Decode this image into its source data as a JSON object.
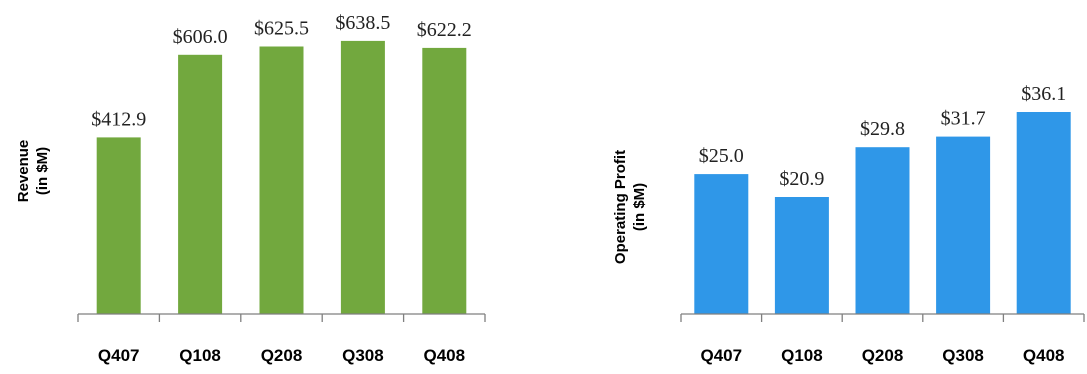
{
  "chart_data": [
    {
      "type": "bar",
      "title": "",
      "ylabel": [
        "Revenue",
        "(in $M)"
      ],
      "xlabel": "",
      "categories": [
        "Q407",
        "Q108",
        "Q208",
        "Q308",
        "Q408"
      ],
      "values": [
        412.9,
        606.0,
        625.5,
        638.5,
        622.2
      ],
      "value_labels": [
        "$412.9",
        "$606.0",
        "$625.5",
        "$638.5",
        "$622.2"
      ],
      "ylim": [
        0,
        650
      ],
      "grid": false,
      "color": "#72a83e"
    },
    {
      "type": "bar",
      "title": "",
      "ylabel": [
        "Operating Profit",
        "(in $M)"
      ],
      "xlabel": "",
      "categories": [
        "Q407",
        "Q108",
        "Q208",
        "Q308",
        "Q408"
      ],
      "values": [
        25.0,
        20.9,
        29.8,
        31.7,
        36.1
      ],
      "value_labels": [
        "$25.0",
        "$20.9",
        "$29.8",
        "$31.7",
        "$36.1"
      ],
      "ylim": [
        0,
        37.7
      ],
      "grid": false,
      "color": "#2f97e8"
    }
  ]
}
